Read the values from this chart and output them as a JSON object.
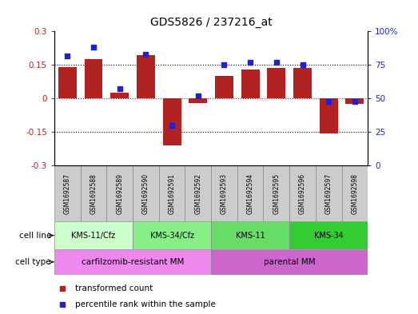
{
  "title": "GDS5826 / 237216_at",
  "samples": [
    "GSM1692587",
    "GSM1692588",
    "GSM1692589",
    "GSM1692590",
    "GSM1692591",
    "GSM1692592",
    "GSM1692593",
    "GSM1692594",
    "GSM1692595",
    "GSM1692596",
    "GSM1692597",
    "GSM1692598"
  ],
  "transformed_count": [
    0.142,
    0.175,
    0.025,
    0.195,
    -0.21,
    -0.02,
    0.1,
    0.13,
    0.137,
    0.135,
    -0.155,
    -0.025
  ],
  "percentile_rank": [
    82,
    88,
    57,
    83,
    30,
    52,
    75,
    77,
    77,
    75,
    48,
    48
  ],
  "bar_color": "#b22222",
  "dot_color": "#2222cc",
  "ylim_left": [
    -0.3,
    0.3
  ],
  "ylim_right": [
    0,
    100
  ],
  "yticks_left": [
    -0.3,
    -0.15,
    0,
    0.15,
    0.3
  ],
  "yticks_right": [
    0,
    25,
    50,
    75,
    100
  ],
  "ytick_labels_left": [
    "-0.3",
    "-0.15",
    "0",
    "0.15",
    "0.3"
  ],
  "ytick_labels_right": [
    "0",
    "25",
    "50",
    "75",
    "100%"
  ],
  "hline_y": [
    0.15,
    0.0,
    -0.15
  ],
  "hline_0_color": "#cc0000",
  "hline_other_color": "#000000",
  "cell_lines": [
    {
      "label": "KMS-11/Cfz",
      "start": 0,
      "end": 3,
      "color": "#ccffcc"
    },
    {
      "label": "KMS-34/Cfz",
      "start": 3,
      "end": 6,
      "color": "#88ee88"
    },
    {
      "label": "KMS-11",
      "start": 6,
      "end": 9,
      "color": "#66dd66"
    },
    {
      "label": "KMS-34",
      "start": 9,
      "end": 12,
      "color": "#33cc33"
    }
  ],
  "cell_types": [
    {
      "label": "carfilzomib-resistant MM",
      "start": 0,
      "end": 6,
      "color": "#ee88ee"
    },
    {
      "label": "parental MM",
      "start": 6,
      "end": 12,
      "color": "#cc66cc"
    }
  ],
  "legend_items": [
    {
      "label": "transformed count",
      "color": "#b22222",
      "marker": "s"
    },
    {
      "label": "percentile rank within the sample",
      "color": "#2222cc",
      "marker": "s"
    }
  ],
  "bar_width": 0.7,
  "sample_box_color": "#cccccc",
  "label_left": [
    "cell line",
    "cell type"
  ],
  "figsize": [
    5.23,
    3.93
  ],
  "dpi": 100
}
